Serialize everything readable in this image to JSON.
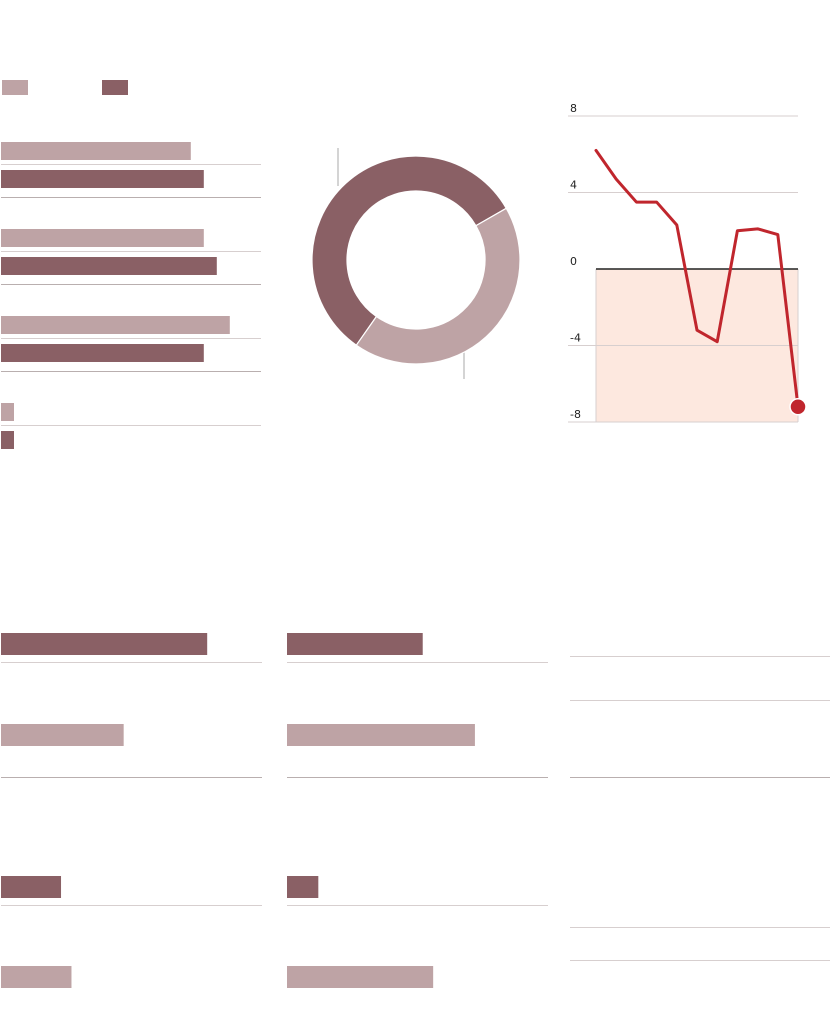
{
  "colors": {
    "light": "#bea3a5",
    "dark": "#8a6065",
    "line": "#c0262d",
    "negative_fill": "#fde8df",
    "rule": "#d7cfcf",
    "axis": "#222222"
  },
  "chart_data": [
    {
      "type": "bar",
      "orientation": "horizontal",
      "legend": {
        "placement": "top-left",
        "swatches": [
          "light",
          "dark"
        ]
      },
      "series": [
        {
          "color": "light",
          "values": [
            0.73,
            0.78,
            0.88,
            0.05
          ]
        },
        {
          "color": "dark",
          "values": [
            0.78,
            0.83,
            0.78,
            0.05
          ]
        }
      ],
      "xlim": [
        0,
        1
      ]
    },
    {
      "type": "pie",
      "style": "donut",
      "values": [
        0.57,
        0.43
      ],
      "slice_colors": [
        "dark",
        "light"
      ],
      "start": "lower-left"
    },
    {
      "type": "line",
      "x": [
        0,
        1,
        2,
        3,
        4,
        5,
        6,
        7,
        8,
        9,
        10
      ],
      "y": [
        6.2,
        4.7,
        3.5,
        3.5,
        2.3,
        -3.2,
        -3.8,
        2.0,
        2.1,
        1.8,
        -7.2
      ],
      "yticks": [
        8,
        4,
        0,
        -4,
        -8
      ],
      "ylim": [
        -8,
        8
      ],
      "negative_region_shaded": true,
      "grid": true,
      "last_point_marker": true
    },
    {
      "type": "bar",
      "orientation": "horizontal",
      "panel": "bottom-left",
      "values": [
        0.79,
        0.47,
        0.23,
        0.27
      ],
      "bar_colors": [
        "dark",
        "light",
        "dark",
        "light"
      ],
      "xlim": [
        0,
        1
      ]
    },
    {
      "type": "bar",
      "orientation": "horizontal",
      "panel": "bottom-middle",
      "values": [
        0.52,
        0.72,
        0.12,
        0.56
      ],
      "bar_colors": [
        "dark",
        "light",
        "dark",
        "light"
      ],
      "xlim": [
        0,
        1
      ]
    }
  ]
}
